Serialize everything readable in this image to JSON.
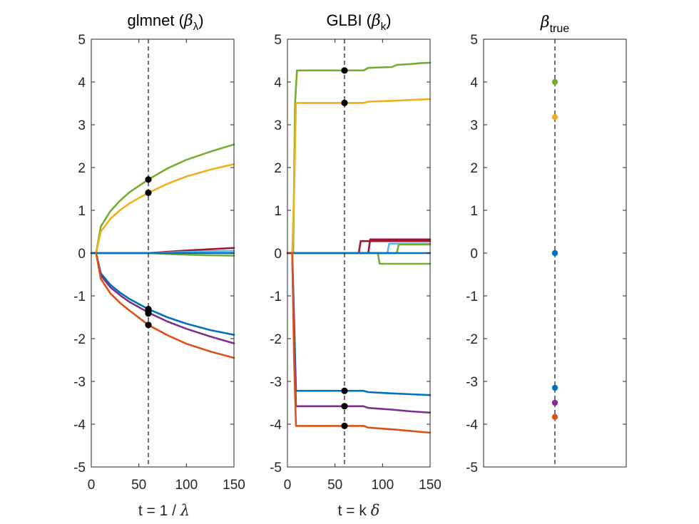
{
  "chart_data": [
    {
      "type": "line",
      "title_text": "glmnet (",
      "title_symbol": "β",
      "title_sub": "λ",
      "title_close": ")",
      "xlabel_text": "t = 1 / ",
      "xlabel_symbol": "λ",
      "xlim": [
        0,
        150
      ],
      "ylim": [
        -5,
        5
      ],
      "xticks": [
        "0",
        "50",
        "100",
        "150"
      ],
      "yticks": [
        "5",
        "4",
        "3",
        "2",
        "1",
        "0",
        "-1",
        "-2",
        "-3",
        "-4",
        "-5"
      ],
      "reference_x": 60,
      "series": [
        {
          "name": "green",
          "color": "#77AC30",
          "x": [
            5,
            10,
            20,
            30,
            40,
            60,
            80,
            100,
            125,
            150
          ],
          "y": [
            0,
            0.62,
            0.98,
            1.22,
            1.42,
            1.72,
            1.98,
            2.18,
            2.37,
            2.54
          ]
        },
        {
          "name": "yellow",
          "color": "#EDB120",
          "x": [
            5,
            10,
            20,
            30,
            40,
            60,
            80,
            100,
            125,
            150
          ],
          "y": [
            0,
            0.5,
            0.8,
            1.0,
            1.16,
            1.41,
            1.62,
            1.79,
            1.95,
            2.08
          ]
        },
        {
          "name": "dark-red",
          "color": "#A2142F",
          "x": [
            0,
            60,
            80,
            100,
            125,
            150
          ],
          "y": [
            0,
            0,
            0.03,
            0.06,
            0.09,
            0.12
          ]
        },
        {
          "name": "light-blue",
          "color": "#4DBEEE",
          "x": [
            0,
            60,
            90,
            120,
            150
          ],
          "y": [
            0,
            0,
            0.02,
            0.04,
            0.05
          ]
        },
        {
          "name": "green-small",
          "color": "#77AC30",
          "x": [
            0,
            60,
            90,
            120,
            150
          ],
          "y": [
            0,
            0,
            -0.03,
            -0.05,
            -0.06
          ]
        },
        {
          "name": "blue-zero",
          "color": "#0072BD",
          "x": [
            0,
            150
          ],
          "y": [
            0,
            0
          ]
        },
        {
          "name": "blue",
          "color": "#0072BD",
          "x": [
            5,
            10,
            20,
            30,
            40,
            60,
            80,
            100,
            125,
            150
          ],
          "y": [
            0,
            -0.47,
            -0.74,
            -0.92,
            -1.07,
            -1.31,
            -1.5,
            -1.65,
            -1.8,
            -1.91
          ]
        },
        {
          "name": "purple",
          "color": "#7E2F8E",
          "x": [
            5,
            10,
            20,
            30,
            40,
            60,
            80,
            100,
            125,
            150
          ],
          "y": [
            0,
            -0.52,
            -0.8,
            -0.98,
            -1.14,
            -1.39,
            -1.6,
            -1.77,
            -1.95,
            -2.11
          ]
        },
        {
          "name": "orange",
          "color": "#D95319",
          "x": [
            5,
            10,
            20,
            30,
            40,
            60,
            80,
            100,
            125,
            150
          ],
          "y": [
            0,
            -0.6,
            -0.94,
            -1.16,
            -1.34,
            -1.68,
            -1.92,
            -2.12,
            -2.3,
            -2.45
          ]
        }
      ],
      "markers": {
        "x": 60,
        "y": [
          1.72,
          1.41,
          -1.31,
          -1.36,
          -1.41,
          -1.68
        ],
        "color": "#000000"
      }
    },
    {
      "type": "line",
      "title_text": "GLBI (",
      "title_symbol": "β",
      "title_sub": "k",
      "title_close": ")",
      "xlabel_text": "t = k ",
      "xlabel_symbol": "δ",
      "xlim": [
        0,
        150
      ],
      "ylim": [
        -5,
        5
      ],
      "xticks": [
        "0",
        "50",
        "100",
        "150"
      ],
      "yticks": [
        "5",
        "4",
        "3",
        "2",
        "1",
        "0",
        "-1",
        "-2",
        "-3",
        "-4",
        "-5"
      ],
      "reference_x": 60,
      "series": [
        {
          "name": "green",
          "color": "#77AC30",
          "x": [
            0,
            6,
            8,
            10,
            80,
            85,
            110,
            115,
            130,
            140,
            150
          ],
          "y": [
            0,
            0,
            3.5,
            4.27,
            4.27,
            4.33,
            4.35,
            4.4,
            4.42,
            4.44,
            4.45
          ]
        },
        {
          "name": "yellow",
          "color": "#EDB120",
          "x": [
            0,
            5,
            7,
            9,
            80,
            85,
            110,
            130,
            150
          ],
          "y": [
            0,
            0,
            1.4,
            3.51,
            3.51,
            3.54,
            3.56,
            3.58,
            3.6
          ]
        },
        {
          "name": "dark-red",
          "color": "#A2142F",
          "x": [
            0,
            75,
            77,
            150
          ],
          "y": [
            0,
            0,
            0.28,
            0.28
          ]
        },
        {
          "name": "dark-red-2",
          "color": "#A2142F",
          "x": [
            0,
            85,
            87,
            150
          ],
          "y": [
            0,
            0,
            0.32,
            0.32
          ]
        },
        {
          "name": "light-blue",
          "color": "#4DBEEE",
          "x": [
            0,
            105,
            107,
            150
          ],
          "y": [
            0,
            0,
            0.22,
            0.22
          ]
        },
        {
          "name": "green-2",
          "color": "#77AC30",
          "x": [
            0,
            95,
            97,
            150
          ],
          "y": [
            0,
            0,
            -0.25,
            -0.25
          ]
        },
        {
          "name": "green-3",
          "color": "#77AC30",
          "x": [
            0,
            115,
            117,
            150
          ],
          "y": [
            0,
            0,
            0.2,
            0.2
          ]
        },
        {
          "name": "blue-zero",
          "color": "#0072BD",
          "x": [
            0,
            150
          ],
          "y": [
            0,
            0
          ]
        },
        {
          "name": "blue",
          "color": "#0072BD",
          "x": [
            0,
            5,
            7,
            9,
            80,
            85,
            110,
            130,
            150
          ],
          "y": [
            0,
            0,
            -1.5,
            -3.22,
            -3.22,
            -3.25,
            -3.28,
            -3.3,
            -3.32
          ]
        },
        {
          "name": "purple",
          "color": "#7E2F8E",
          "x": [
            0,
            5,
            7,
            9,
            80,
            85,
            110,
            130,
            150
          ],
          "y": [
            0,
            0,
            -2.0,
            -3.58,
            -3.58,
            -3.62,
            -3.66,
            -3.7,
            -3.73
          ]
        },
        {
          "name": "orange",
          "color": "#D95319",
          "x": [
            0,
            5,
            7,
            9,
            80,
            85,
            110,
            130,
            150
          ],
          "y": [
            0,
            0,
            -2.5,
            -4.04,
            -4.04,
            -4.08,
            -4.12,
            -4.16,
            -4.2
          ]
        }
      ],
      "markers": {
        "x": 60,
        "y": [
          4.27,
          3.51,
          -3.22,
          -3.58,
          -4.04
        ],
        "color": "#000000"
      }
    },
    {
      "type": "scatter",
      "title_symbol": "β",
      "title_sub": "true",
      "xlim": [
        0,
        2
      ],
      "ylim": [
        -5,
        5
      ],
      "xticks": [],
      "yticks": [
        "5",
        "4",
        "3",
        "2",
        "1",
        "0",
        "-1",
        "-2",
        "-3",
        "-4",
        "-5"
      ],
      "reference_x": 1,
      "points": [
        {
          "name": "green",
          "color": "#77AC30",
          "x": 1,
          "y": 4.0
        },
        {
          "name": "yellow",
          "color": "#EDB120",
          "x": 1,
          "y": 3.18
        },
        {
          "name": "blue-zero",
          "color": "#0072BD",
          "x": 1,
          "y": 0
        },
        {
          "name": "blue",
          "color": "#0072BD",
          "x": 1,
          "y": -3.15
        },
        {
          "name": "purple",
          "color": "#7E2F8E",
          "x": 1,
          "y": -3.5
        },
        {
          "name": "orange",
          "color": "#D95319",
          "x": 1,
          "y": -3.83
        }
      ]
    }
  ]
}
